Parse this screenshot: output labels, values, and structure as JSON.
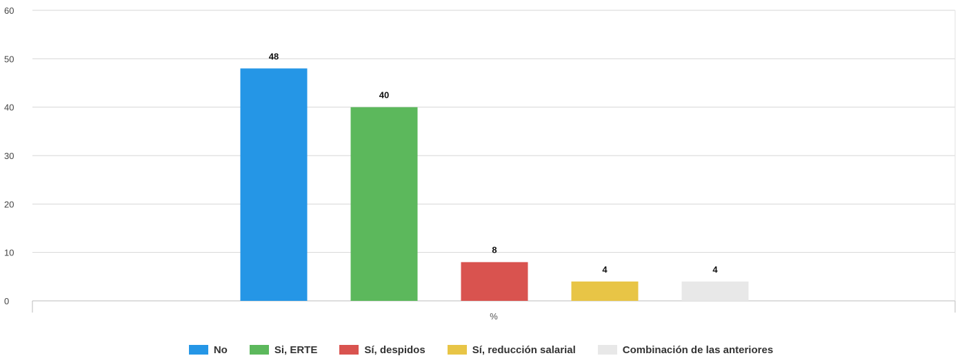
{
  "chart_data": {
    "type": "bar",
    "categories": [
      "%"
    ],
    "series": [
      {
        "name": "No",
        "values": [
          48
        ],
        "color": "#2596e6"
      },
      {
        "name": "Si, ERTE",
        "values": [
          40
        ],
        "color": "#5cb85c"
      },
      {
        "name": "Sí, despidos",
        "values": [
          8
        ],
        "color": "#d9534f"
      },
      {
        "name": "Sí, reducción salarial",
        "values": [
          4
        ],
        "color": "#e8c546"
      },
      {
        "name": "Combinación de las anteriores",
        "values": [
          4
        ],
        "color": "#e8e8e8"
      }
    ],
    "yticks": [
      "0",
      "10",
      "20",
      "30",
      "40",
      "50",
      "60"
    ],
    "ylim": [
      0,
      60
    ],
    "grid": true,
    "legend": "bottom"
  }
}
